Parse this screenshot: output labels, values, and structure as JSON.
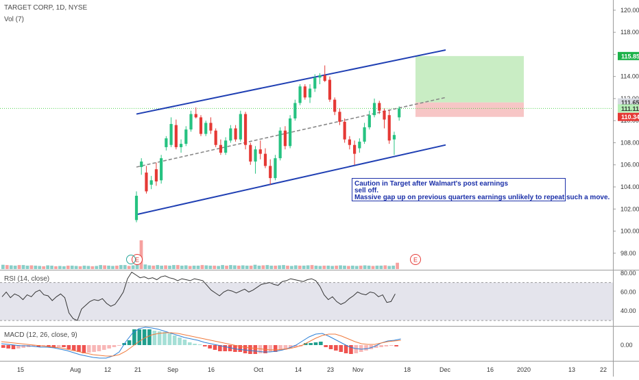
{
  "chart_data": {
    "type": "candlestick",
    "header": {
      "title": "TARGET CORP, 1D, NYSE",
      "volume_label": "Vol (7)"
    },
    "colors": {
      "up": "#26a69a",
      "down": "#ef5350",
      "bull_candle": "#26c281",
      "bear_candle": "#e53935",
      "channel": "#1f3fb3",
      "midline": "#888888",
      "target_zone": "#c9edc4",
      "stop_zone": "#f7c6c6",
      "rsi_band": "#e4e4ec",
      "macd_line": "#2a7fd6",
      "signal_line": "#f07a3c"
    },
    "price_axis": {
      "min": 96.5,
      "max": 120.8,
      "ticks": [
        "120.00",
        "118.00",
        "116.00",
        "114.00",
        "112.00",
        "110.00",
        "108.00",
        "106.00",
        "104.00",
        "102.00",
        "100.00",
        "98.00"
      ]
    },
    "price_markers": [
      {
        "label": "115.85",
        "value": 115.85,
        "color": "#1db24a"
      },
      {
        "label": "111.65",
        "value": 111.65,
        "color": "#d7dbe2",
        "text_color": "#333333"
      },
      {
        "label": "111.11",
        "value": 111.11,
        "color": "#b7f0b7",
        "text_color": "#333333"
      },
      {
        "label": "110.34",
        "value": 110.34,
        "color": "#e53935"
      }
    ],
    "current_price": 111.11,
    "x_axis_ticks": [
      "15",
      "Aug",
      "12",
      "21",
      "Sep",
      "16",
      "Oct",
      "14",
      "23",
      "Nov",
      "18",
      "Dec",
      "16",
      "2020",
      "13",
      "22"
    ],
    "candles": [
      {
        "o": 101.0,
        "h": 103.6,
        "l": 100.8,
        "c": 103.2
      },
      {
        "o": 105.8,
        "h": 106.6,
        "l": 105.1,
        "c": 106.3
      },
      {
        "o": 105.3,
        "h": 105.9,
        "l": 103.4,
        "c": 103.6
      },
      {
        "o": 104.2,
        "h": 105.0,
        "l": 103.8,
        "c": 104.6
      },
      {
        "o": 105.6,
        "h": 106.2,
        "l": 104.1,
        "c": 104.5
      },
      {
        "o": 104.6,
        "h": 106.9,
        "l": 104.3,
        "c": 106.6
      },
      {
        "o": 107.6,
        "h": 108.6,
        "l": 107.3,
        "c": 108.4
      },
      {
        "o": 107.8,
        "h": 110.3,
        "l": 107.6,
        "c": 109.7
      },
      {
        "o": 109.6,
        "h": 110.1,
        "l": 107.4,
        "c": 107.6
      },
      {
        "o": 107.6,
        "h": 108.3,
        "l": 107.1,
        "c": 107.9
      },
      {
        "o": 107.9,
        "h": 109.5,
        "l": 107.7,
        "c": 109.2
      },
      {
        "o": 109.2,
        "h": 110.9,
        "l": 109.0,
        "c": 110.6
      },
      {
        "o": 110.6,
        "h": 111.2,
        "l": 110.2,
        "c": 110.3
      },
      {
        "o": 110.3,
        "h": 110.5,
        "l": 108.6,
        "c": 108.8
      },
      {
        "o": 108.8,
        "h": 110.0,
        "l": 108.6,
        "c": 109.8
      },
      {
        "o": 109.8,
        "h": 110.3,
        "l": 108.8,
        "c": 109.1
      },
      {
        "o": 109.1,
        "h": 109.3,
        "l": 107.6,
        "c": 107.8
      },
      {
        "o": 107.8,
        "h": 108.3,
        "l": 106.9,
        "c": 107.1
      },
      {
        "o": 107.1,
        "h": 108.5,
        "l": 106.9,
        "c": 108.2
      },
      {
        "o": 108.2,
        "h": 109.6,
        "l": 108.0,
        "c": 109.3
      },
      {
        "o": 109.3,
        "h": 109.6,
        "l": 108.1,
        "c": 108.3
      },
      {
        "o": 108.3,
        "h": 110.9,
        "l": 108.1,
        "c": 110.6
      },
      {
        "o": 110.6,
        "h": 110.8,
        "l": 107.4,
        "c": 107.8
      },
      {
        "o": 107.8,
        "h": 108.0,
        "l": 106.0,
        "c": 106.3
      },
      {
        "o": 106.3,
        "h": 107.7,
        "l": 105.2,
        "c": 107.4
      },
      {
        "o": 107.4,
        "h": 108.2,
        "l": 106.5,
        "c": 107.0
      },
      {
        "o": 107.0,
        "h": 107.5,
        "l": 105.7,
        "c": 105.9
      },
      {
        "o": 105.9,
        "h": 106.5,
        "l": 104.2,
        "c": 104.8
      },
      {
        "o": 104.8,
        "h": 106.9,
        "l": 104.6,
        "c": 106.6
      },
      {
        "o": 106.6,
        "h": 109.4,
        "l": 106.4,
        "c": 109.1
      },
      {
        "o": 109.1,
        "h": 109.5,
        "l": 107.4,
        "c": 107.7
      },
      {
        "o": 107.7,
        "h": 110.5,
        "l": 107.5,
        "c": 110.2
      },
      {
        "o": 110.2,
        "h": 111.9,
        "l": 110.0,
        "c": 111.6
      },
      {
        "o": 111.6,
        "h": 113.3,
        "l": 111.4,
        "c": 113.1
      },
      {
        "o": 113.1,
        "h": 113.3,
        "l": 111.9,
        "c": 112.1
      },
      {
        "o": 112.1,
        "h": 113.3,
        "l": 111.6,
        "c": 112.9
      },
      {
        "o": 112.9,
        "h": 114.2,
        "l": 112.6,
        "c": 113.9
      },
      {
        "o": 113.9,
        "h": 114.3,
        "l": 113.3,
        "c": 114.1
      },
      {
        "o": 114.1,
        "h": 115.0,
        "l": 113.5,
        "c": 113.6
      },
      {
        "o": 113.7,
        "h": 114.0,
        "l": 111.7,
        "c": 111.9
      },
      {
        "o": 111.9,
        "h": 112.1,
        "l": 110.5,
        "c": 110.8
      },
      {
        "o": 110.8,
        "h": 111.1,
        "l": 109.6,
        "c": 109.9
      },
      {
        "o": 109.9,
        "h": 110.2,
        "l": 108.0,
        "c": 108.3
      },
      {
        "o": 108.3,
        "h": 108.6,
        "l": 107.4,
        "c": 107.8
      },
      {
        "o": 107.8,
        "h": 108.2,
        "l": 106.0,
        "c": 107.0
      },
      {
        "o": 107.5,
        "h": 108.4,
        "l": 107.1,
        "c": 108.1
      },
      {
        "o": 108.1,
        "h": 109.8,
        "l": 107.9,
        "c": 109.4
      },
      {
        "o": 109.4,
        "h": 110.9,
        "l": 109.2,
        "c": 110.5
      },
      {
        "o": 110.5,
        "h": 112.0,
        "l": 110.3,
        "c": 111.6
      },
      {
        "o": 111.6,
        "h": 111.8,
        "l": 110.6,
        "c": 110.9
      },
      {
        "o": 110.9,
        "h": 111.1,
        "l": 109.3,
        "c": 110.1
      },
      {
        "o": 110.5,
        "h": 111.0,
        "l": 107.9,
        "c": 108.2
      },
      {
        "o": 108.3,
        "h": 109.0,
        "l": 106.9,
        "c": 108.7
      },
      {
        "o": 110.3,
        "h": 111.3,
        "l": 110.0,
        "c": 111.1
      }
    ],
    "volume": {
      "values": [
        15,
        14,
        13,
        12,
        14,
        14,
        12,
        13,
        12,
        11,
        10,
        13,
        12,
        10,
        11,
        10,
        12,
        12,
        11,
        10,
        12,
        11,
        10,
        11,
        14,
        13,
        12,
        11,
        12,
        14,
        14,
        11,
        13,
        28,
        100,
        16,
        13,
        12,
        14,
        12,
        13,
        12,
        14,
        14,
        12,
        13,
        11,
        12,
        12,
        14,
        13,
        12,
        12,
        11,
        14,
        12,
        14,
        13,
        12,
        13,
        12,
        12,
        15,
        12,
        13,
        14,
        12,
        12,
        13,
        14,
        12,
        11,
        13,
        12,
        12,
        13,
        14,
        12,
        11,
        12,
        12,
        11,
        12,
        13,
        12,
        11,
        12,
        11,
        12,
        13,
        12,
        11,
        12,
        12,
        13,
        11,
        12,
        22
      ]
    },
    "rsi": {
      "label": "RSI (14, close)",
      "ticks": [
        "80.00",
        "60.00",
        "40.00"
      ],
      "overbought": 70,
      "oversold": 30,
      "ymin": 25,
      "ymax": 82,
      "values": [
        55,
        60,
        54,
        58,
        56,
        52,
        57,
        55,
        60,
        62,
        57,
        56,
        51,
        55,
        58,
        54,
        38,
        32,
        30,
        42,
        46,
        50,
        52,
        51,
        53,
        48,
        45,
        47,
        53,
        60,
        74,
        81,
        78,
        75,
        76,
        74,
        75,
        73,
        76,
        77,
        75,
        74,
        72,
        74,
        73,
        72,
        74,
        73,
        72,
        67,
        62,
        59,
        56,
        60,
        62,
        61,
        59,
        61,
        63,
        60,
        62,
        65,
        68,
        69,
        70,
        68,
        67,
        71,
        72,
        74,
        73,
        72,
        71,
        73,
        74,
        72,
        66,
        57,
        52,
        55,
        50,
        47,
        49,
        53,
        56,
        60,
        58,
        57,
        60,
        59,
        55,
        57,
        49,
        50,
        58
      ]
    },
    "macd": {
      "label": "MACD (12, 26, close, 9)",
      "ticks": [
        "0.00"
      ],
      "ymin": -2.2,
      "ymax": 2.6,
      "hist": [
        -0.4,
        -0.5,
        -0.6,
        -0.5,
        -0.4,
        -0.3,
        -0.2,
        -0.3,
        -0.2,
        -0.3,
        -0.4,
        -0.3,
        -0.3,
        -0.6,
        -0.8,
        -1.0,
        -1.2,
        -1.1,
        -1.0,
        -0.9,
        -0.7,
        -0.5,
        -0.3,
        -0.1,
        0.3,
        0.7,
        2.3,
        2.3,
        2.3,
        2.3,
        2.1,
        2.0,
        1.9,
        1.7,
        1.4,
        1.1,
        0.8,
        0.4,
        0.2,
        0.1,
        -0.2,
        -0.5,
        -0.7,
        -0.9,
        -0.9,
        -0.9,
        -1.0,
        -1.0,
        -1.2,
        -1.3,
        -1.3,
        -1.2,
        -1.2,
        -1.0,
        -1.0,
        -0.8,
        -0.7,
        -0.5,
        -0.3,
        -0.2,
        0.3,
        0.3,
        0.4,
        0.5,
        -0.3,
        -0.6,
        -0.8,
        -1.0,
        -1.2,
        -1.3,
        -1.2,
        -1.0,
        -0.8,
        -0.6,
        -0.4,
        -0.3,
        -0.2,
        -0.1,
        -0.2
      ],
      "macd_line": [
        0.2,
        0.1,
        0.0,
        -0.1,
        -0.1,
        -0.2,
        -0.3,
        -0.3,
        -0.4,
        -0.6,
        -0.8,
        -1.1,
        -1.4,
        -1.6,
        -1.8,
        -1.9,
        -1.9,
        -1.6,
        -1.0,
        0.5,
        1.7,
        2.4,
        2.6,
        2.5,
        2.3,
        2.0,
        1.7,
        1.4,
        1.1,
        0.9,
        0.7,
        0.4,
        0.2,
        0.0,
        -0.2,
        -0.4,
        -0.6,
        -0.7,
        -0.8,
        -0.9,
        -1.0,
        -1.0,
        -0.9,
        -0.7,
        -0.4,
        0.0,
        0.6,
        1.2,
        1.6,
        1.7,
        1.3,
        0.8,
        0.3,
        -0.2,
        -0.5,
        -0.6,
        -0.5,
        -0.2,
        0.3,
        0.6,
        0.7,
        0.9
      ],
      "signal_line": [
        0.5,
        0.4,
        0.3,
        0.2,
        0.1,
        0.0,
        -0.1,
        -0.2,
        -0.3,
        -0.4,
        -0.6,
        -0.8,
        -1.0,
        -1.2,
        -1.4,
        -1.5,
        -1.6,
        -1.6,
        -1.4,
        -0.9,
        -0.2,
        0.5,
        1.1,
        1.5,
        1.7,
        1.8,
        1.8,
        1.7,
        1.5,
        1.3,
        1.1,
        0.9,
        0.7,
        0.5,
        0.3,
        0.1,
        -0.1,
        -0.3,
        -0.4,
        -0.5,
        -0.6,
        -0.7,
        -0.7,
        -0.6,
        -0.5,
        -0.3,
        0.0,
        0.5,
        1.0,
        1.4,
        1.6,
        1.6,
        1.3,
        0.9,
        0.5,
        0.2,
        0.1,
        0.1,
        0.3,
        0.5,
        0.6,
        0.7
      ]
    },
    "annotation": {
      "lines": [
        "Caution in Target after Walmart's post earnings",
        "sell off.",
        "Massive gap up on previous quarters earnings unlikely to repeat such a move."
      ]
    },
    "earnings_marker": "E"
  }
}
